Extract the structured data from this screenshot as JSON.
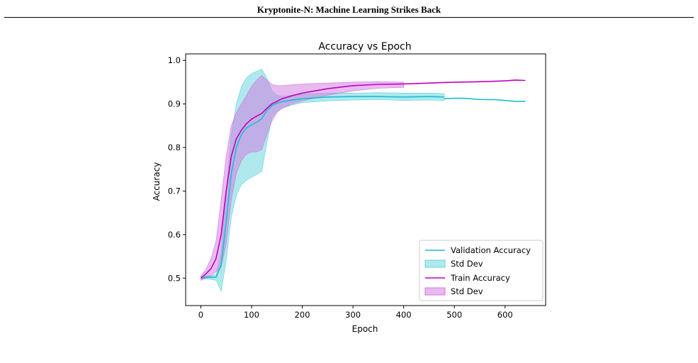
{
  "running_header": "Kryptonite-N: Machine Learning Strikes Back",
  "colors": {
    "validation": "#17becf",
    "train": "#c000c0",
    "validation_band": "#5fd3dc",
    "train_band": "#d275e0",
    "overlap_band": "#9b7fcc"
  },
  "chart_data": {
    "type": "line",
    "title": "Accuracy vs Epoch",
    "xlabel": "Epoch",
    "ylabel": "Accuracy",
    "xlim": [
      -30,
      680
    ],
    "ylim": [
      0.437,
      1.015
    ],
    "xticks": [
      0,
      100,
      200,
      300,
      400,
      500,
      600
    ],
    "yticks": [
      0.5,
      0.6,
      0.7,
      0.8,
      0.9,
      1.0
    ],
    "grid": false,
    "legend_position": "lower-right",
    "legend": [
      "Validation Accuracy",
      "Std Dev",
      "Train Accuracy",
      "Std Dev"
    ],
    "series": [
      {
        "name": "Validation Accuracy",
        "band_label": "Std Dev",
        "x": [
          0,
          10,
          20,
          30,
          40,
          50,
          60,
          70,
          80,
          90,
          100,
          110,
          120,
          130,
          140,
          150,
          160,
          180,
          200,
          250,
          300,
          350,
          400,
          450,
          480
        ],
        "y": [
          0.5,
          0.502,
          0.502,
          0.502,
          0.53,
          0.63,
          0.74,
          0.8,
          0.83,
          0.845,
          0.852,
          0.858,
          0.866,
          0.885,
          0.896,
          0.902,
          0.905,
          0.909,
          0.912,
          0.916,
          0.917,
          0.917,
          0.916,
          0.917,
          0.916
        ],
        "upper": [
          0.503,
          0.505,
          0.505,
          0.508,
          0.56,
          0.7,
          0.83,
          0.9,
          0.94,
          0.96,
          0.97,
          0.975,
          0.98,
          0.96,
          0.93,
          0.92,
          0.917,
          0.92,
          0.922,
          0.925,
          0.925,
          0.926,
          0.925,
          0.925,
          0.924
        ],
        "lower": [
          0.497,
          0.498,
          0.497,
          0.495,
          0.47,
          0.54,
          0.64,
          0.69,
          0.715,
          0.725,
          0.732,
          0.738,
          0.745,
          0.81,
          0.868,
          0.884,
          0.89,
          0.898,
          0.903,
          0.907,
          0.909,
          0.91,
          0.908,
          0.909,
          0.908
        ]
      },
      {
        "name": "Validation Accuracy",
        "x": [
          480,
          500,
          520,
          540,
          560,
          580,
          600,
          620,
          640
        ],
        "y": [
          0.912,
          0.913,
          0.913,
          0.911,
          0.91,
          0.91,
          0.908,
          0.906,
          0.906
        ]
      },
      {
        "name": "Train Accuracy",
        "band_label": "Std Dev",
        "x": [
          0,
          10,
          20,
          30,
          40,
          50,
          60,
          70,
          80,
          90,
          100,
          110,
          120,
          130,
          140,
          150,
          160,
          180,
          200,
          250,
          300,
          350,
          400
        ],
        "y": [
          0.5,
          0.51,
          0.522,
          0.545,
          0.6,
          0.7,
          0.78,
          0.82,
          0.84,
          0.855,
          0.865,
          0.872,
          0.878,
          0.89,
          0.9,
          0.906,
          0.912,
          0.919,
          0.925,
          0.935,
          0.942,
          0.945,
          0.946
        ],
        "upper": [
          0.505,
          0.52,
          0.545,
          0.585,
          0.68,
          0.78,
          0.85,
          0.88,
          0.9,
          0.92,
          0.94,
          0.955,
          0.965,
          0.955,
          0.945,
          0.942,
          0.942,
          0.944,
          0.946,
          0.948,
          0.95,
          0.951,
          0.95
        ],
        "lower": [
          0.495,
          0.5,
          0.505,
          0.515,
          0.525,
          0.58,
          0.68,
          0.74,
          0.77,
          0.785,
          0.79,
          0.79,
          0.795,
          0.83,
          0.86,
          0.88,
          0.89,
          0.9,
          0.907,
          0.92,
          0.93,
          0.936,
          0.938
        ]
      },
      {
        "name": "Train Accuracy",
        "x": [
          400,
          450,
          500,
          550,
          600,
          620,
          640
        ],
        "y": [
          0.946,
          0.948,
          0.95,
          0.951,
          0.953,
          0.955,
          0.954
        ]
      }
    ]
  }
}
